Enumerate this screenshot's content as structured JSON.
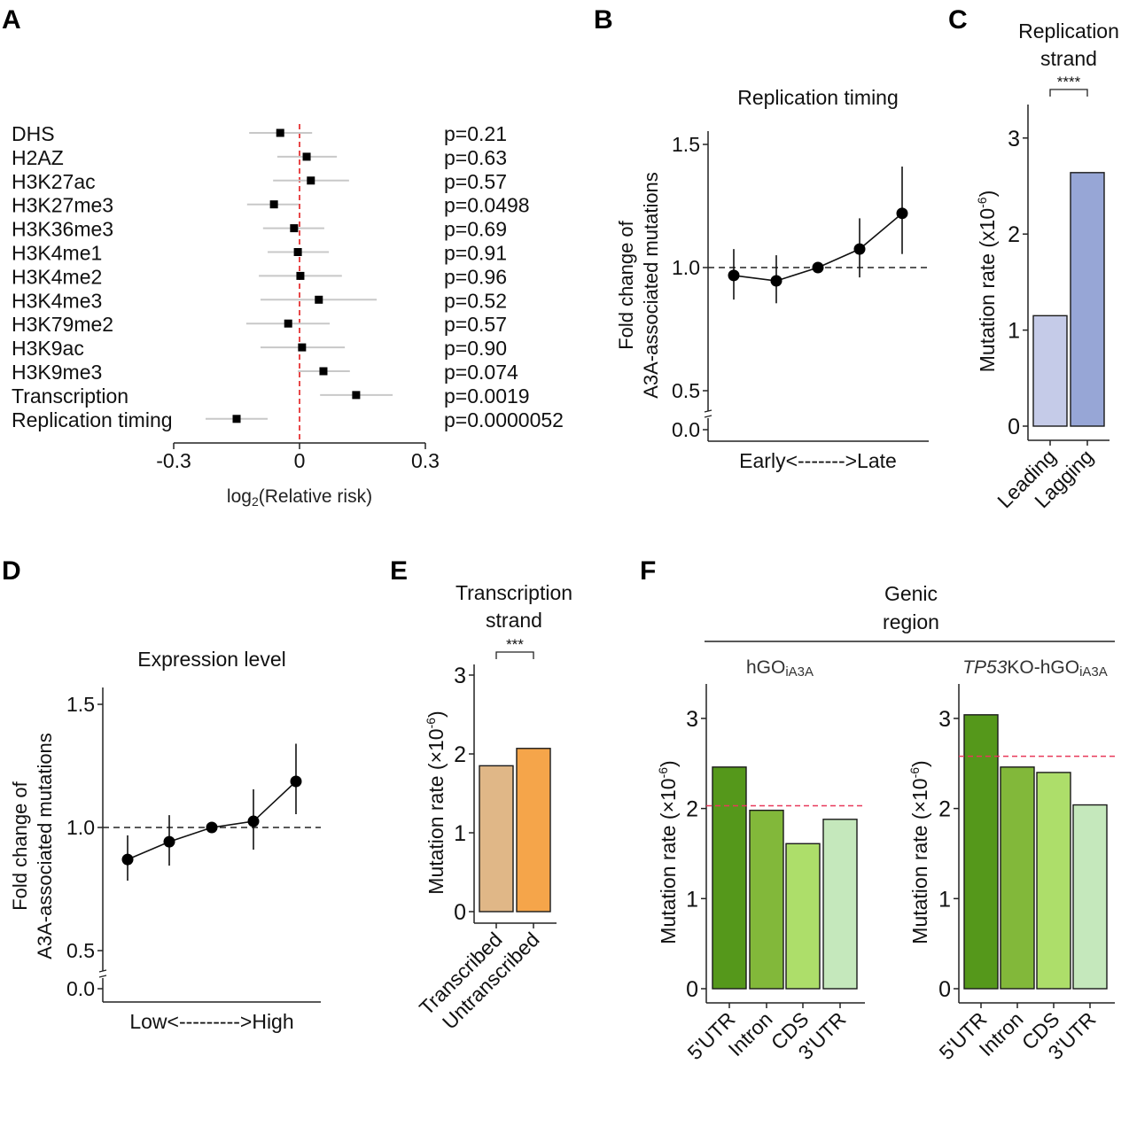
{
  "panel_letters": [
    "A",
    "B",
    "C",
    "D",
    "E",
    "F"
  ],
  "chart_data": [
    {
      "panel": "A",
      "type": "scatter",
      "subtype": "forest",
      "title": "",
      "xlabel": "log2(Relative risk)",
      "xlabel_main": "log",
      "xlabel_sub": "2",
      "xlabel_rest": "(Relative risk)",
      "xlim": [
        -0.3,
        0.3
      ],
      "xticks": [
        -0.3,
        0,
        0.3
      ],
      "xtick_labels": [
        "-0.3",
        "0",
        "0.3"
      ],
      "reference_line": {
        "x": 0,
        "color": "#e31a1c",
        "style": "dashed"
      },
      "categories": [
        "DHS",
        "H2AZ",
        "H3K27ac",
        "H3K27me3",
        "H3K36me3",
        "H3K4me1",
        "H3K4me2",
        "H3K4me3",
        "H3K79me2",
        "H3K9ac",
        "H3K9me3",
        "Transcription",
        "Replication timing"
      ],
      "estimate": [
        -0.046,
        0.017,
        0.027,
        -0.061,
        -0.013,
        -0.004,
        0.002,
        0.046,
        -0.027,
        0.006,
        0.057,
        0.135,
        -0.15
      ],
      "ci_low": [
        -0.12,
        -0.053,
        -0.063,
        -0.125,
        -0.087,
        -0.076,
        -0.097,
        -0.093,
        -0.127,
        -0.093,
        -0.004,
        0.049,
        -0.224
      ],
      "ci_high": [
        0.03,
        0.089,
        0.118,
        -0.002,
        0.059,
        0.07,
        0.101,
        0.184,
        0.072,
        0.108,
        0.12,
        0.222,
        -0.076
      ],
      "p_values": [
        "p=0.21",
        "p=0.63",
        "p=0.57",
        "p=0.0498",
        "p=0.69",
        "p=0.91",
        "p=0.96",
        "p=0.52",
        "p=0.57",
        "p=0.90",
        "p=0.074",
        "p=0.0019",
        "p=0.0000052"
      ]
    },
    {
      "panel": "B",
      "type": "line",
      "title": "Replication timing",
      "ylabel_line1": "Fold change of",
      "ylabel_line2": "A3A-associated mutations",
      "xlabel": "Early<------->Late",
      "x": [
        1,
        2,
        3,
        4,
        5
      ],
      "values": [
        0.968,
        0.946,
        1.0,
        1.075,
        1.22
      ],
      "err_low": [
        0.87,
        0.855,
        1.0,
        0.96,
        1.055
      ],
      "err_high": [
        1.075,
        1.05,
        1.0,
        1.2,
        1.41
      ],
      "ylim": [
        0.0,
        1.6
      ],
      "axis_break": true,
      "yticks": [
        0.0,
        0.5,
        1.0,
        1.5
      ],
      "ytick_labels": [
        "0.0",
        "0.5",
        "1.0",
        "1.5"
      ],
      "reference_line": {
        "y": 1.0,
        "style": "dashed"
      }
    },
    {
      "panel": "C",
      "type": "bar",
      "title_line1": "Replication",
      "title_line2": "strand",
      "significance": "****",
      "ylabel": "Mutation rate (x10-6)",
      "ylabel_main": "Mutation rate (x10",
      "ylabel_sup": "-6",
      "ylabel_end": ")",
      "categories": [
        "Leading",
        "Lagging"
      ],
      "values": [
        1.15,
        2.64
      ],
      "colors": [
        "#c5cbe8",
        "#97a6d6"
      ],
      "ylim": [
        0,
        3
      ],
      "yticks": [
        0,
        1,
        2,
        3
      ],
      "ytick_labels": [
        "0",
        "1",
        "2",
        "3"
      ]
    },
    {
      "panel": "D",
      "type": "line",
      "title": "Expression level",
      "ylabel_line1": "Fold change of",
      "ylabel_line2": "A3A-associated mutations",
      "xlabel": "Low<--------->High",
      "x": [
        1,
        2,
        3,
        4,
        5
      ],
      "values": [
        0.87,
        0.942,
        1.0,
        1.025,
        1.187
      ],
      "err_low": [
        0.784,
        0.845,
        1.0,
        0.91,
        1.054
      ],
      "err_high": [
        0.968,
        1.05,
        1.0,
        1.155,
        1.34
      ],
      "ylim": [
        0.0,
        1.6
      ],
      "axis_break": true,
      "yticks": [
        0.0,
        0.5,
        1.0,
        1.5
      ],
      "ytick_labels": [
        "0.0",
        "0.5",
        "1.0",
        "1.5"
      ],
      "reference_line": {
        "y": 1.0,
        "style": "dashed"
      }
    },
    {
      "panel": "E",
      "type": "bar",
      "title_line1": "Transcription",
      "title_line2": "strand",
      "significance": "***",
      "ylabel": "Mutation rate (×10-6)",
      "ylabel_main": "Mutation rate (×10",
      "ylabel_sup": "-6",
      "ylabel_end": ")",
      "categories": [
        "Transcribed",
        "Untranscribed"
      ],
      "values": [
        1.85,
        2.07
      ],
      "colors": [
        "#e0b787",
        "#f5a54a"
      ],
      "ylim": [
        0,
        3
      ],
      "yticks": [
        0,
        1,
        2,
        3
      ],
      "ytick_labels": [
        "0",
        "1",
        "2",
        "3"
      ]
    },
    {
      "panel": "F",
      "type": "bar",
      "group_title_line1": "Genic",
      "group_title_line2": "region",
      "subpanels": [
        {
          "title_main": "hGO",
          "title_sub": "iA3A",
          "title_italic": "",
          "ylabel_main": "Mutation rate (×10",
          "ylabel_sup": "-6",
          "ylabel_end": ")",
          "categories": [
            "5'UTR",
            "Intron",
            "CDS",
            "3'UTR"
          ],
          "values": [
            2.46,
            1.98,
            1.61,
            1.88
          ],
          "colors": [
            "#55981b",
            "#82b83a",
            "#adde6a",
            "#c5e8bc"
          ],
          "reference_line": {
            "y": 2.03,
            "color": "#e8395a",
            "style": "dashed"
          },
          "ylim": [
            0,
            3.3
          ],
          "yticks": [
            0,
            1,
            2,
            3
          ],
          "ytick_labels": [
            "0",
            "1",
            "2",
            "3"
          ]
        },
        {
          "title_main": "KO-hGO",
          "title_sub": "iA3A",
          "title_italic": "TP53",
          "ylabel_main": "Mutation rate (×10",
          "ylabel_sup": "-6",
          "ylabel_end": ")",
          "categories": [
            "5'UTR",
            "Intron",
            "CDS",
            "3'UTR"
          ],
          "values": [
            3.04,
            2.46,
            2.4,
            2.04
          ],
          "colors": [
            "#55981b",
            "#82b83a",
            "#adde6a",
            "#c5e8bc"
          ],
          "reference_line": {
            "y": 2.58,
            "color": "#e8395a",
            "style": "dashed"
          },
          "ylim": [
            0,
            3.3
          ],
          "yticks": [
            0,
            1,
            2,
            3
          ],
          "ytick_labels": [
            "0",
            "1",
            "2",
            "3"
          ]
        }
      ]
    }
  ]
}
